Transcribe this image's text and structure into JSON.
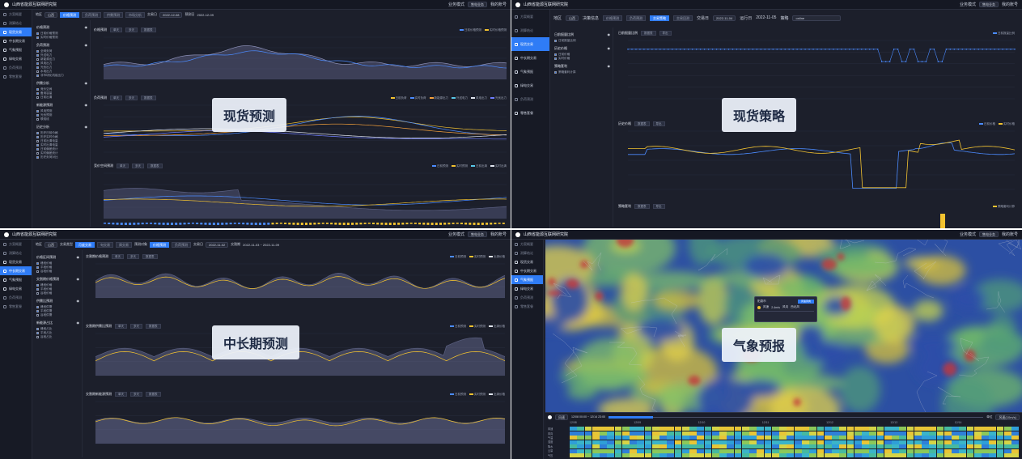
{
  "app": {
    "title": "山西省能源互联网研究院",
    "biz_mode_label": "业务模式",
    "biz_mode_value": "售电业务",
    "account": "我的账号"
  },
  "sidebar": {
    "items": [
      "方案概要",
      "测算结论",
      "现货交易",
      "中长期交易",
      "气象预报",
      "绿电交易",
      "负荷预测",
      "零售套餐"
    ]
  },
  "quadrants": {
    "spot_forecast": "现货预测",
    "spot_strategy": "现货策略",
    "mid_long_forecast": "中长期预测",
    "weather_forecast": "气象预报"
  },
  "q1": {
    "filter": {
      "region_label": "地区",
      "region_value": "山西",
      "tabs": [
        "价格预测",
        "负荷预测",
        "供需预测",
        "市场分析"
      ],
      "date_label": "交易日",
      "date_value": "2022-12-08",
      "date2_label": "预测日",
      "date2_value": "2022-12-09"
    },
    "left_groups": [
      {
        "title": "价格预测",
        "items": [
          "日前价格预测",
          "实时价格预测"
        ]
      },
      {
        "title": "负荷预测",
        "items": [
          "全网负荷",
          "外送电力",
          "新能源出力",
          "风电出力",
          "光伏出力",
          "水电出力",
          "非市场化机组出力"
        ]
      },
      {
        "title": "供需分析",
        "items": [
          "竞价空间",
          "备用容量",
          "日前出清"
        ]
      },
      {
        "title": "新能源预测",
        "items": [
          "风电预测",
          "光伏预测",
          "联络线"
        ]
      },
      {
        "title": "历史分析",
        "items": [
          "历史日前价格",
          "历史实时价格",
          "日前出清电量",
          "实时出清电量",
          "日前偏差统计",
          "实时偏差统计",
          "历史负荷对比"
        ]
      }
    ],
    "charts": [
      {
        "title": "价格预测",
        "buttons": [
          "单天",
          "多天",
          "数据表"
        ],
        "legend": [
          "日前价格预测",
          "实时价格预测"
        ]
      },
      {
        "title": "负荷预测",
        "buttons": [
          "单天",
          "多天",
          "数据表"
        ],
        "legend": [
          "日前负荷",
          "实时负荷",
          "新能源出力",
          "外送电力",
          "风电出力",
          "光伏出力"
        ]
      },
      {
        "title": "竞价空间预测",
        "buttons": [
          "单天",
          "多天",
          "数据表"
        ],
        "legend": [
          "日前预测",
          "实时预测",
          "日前出清",
          "实时出清"
        ]
      }
    ]
  },
  "q2": {
    "filter": {
      "region_label": "地区",
      "region_value": "山西",
      "strategy_label": "决策信息",
      "tabs": [
        "价格预测",
        "负荷预测",
        "交易策略",
        "交易回测"
      ],
      "date_label": "交易日",
      "date_value": "2022-11-04",
      "date2_label": "运行日",
      "date2_value": "2022-11-05",
      "method_label": "策略",
      "method_value": "online"
    },
    "left_groups": [
      {
        "title": "日前报量比例",
        "items": [
          "日前报量比例"
        ]
      },
      {
        "title": "历史价格",
        "items": [
          "日前价格",
          "实时价格"
        ]
      },
      {
        "title": "策略套利",
        "items": [
          "策略套利计算"
        ]
      }
    ],
    "charts": [
      {
        "title": "日前报量比例",
        "buttons": [
          "数据表",
          "导出"
        ],
        "legend": [
          "日前报量比例"
        ],
        "ticks": [
          "1",
          "0.8",
          "0.6",
          "0.4",
          "0.2",
          "0"
        ],
        "xticks": [
          "2022-11-05 00:15",
          "2022-11-05 04:15",
          "2022-11-05 08:15",
          "2022-11-05 12:15",
          "2022-11-05 16:15",
          "2022-11-05 20:15"
        ]
      },
      {
        "title": "历史价格",
        "buttons": [
          "数据表",
          "导出"
        ],
        "legend": [
          "日前价格",
          "实时价格"
        ],
        "xticks": [
          "2022-11-05 00:15",
          "2022-11-05 04:15",
          "2022-11-05 08:15",
          "2022-11-05 12:15",
          "2022-11-05 16:15",
          "2022-11-05 20:15"
        ]
      },
      {
        "title": "策略套利",
        "buttons": [
          "数据表",
          "导出"
        ],
        "legend": [
          "策略套利计算"
        ]
      }
    ]
  },
  "q3": {
    "filter": {
      "region_label": "地区",
      "region_value": "山西",
      "type_label": "交易类型",
      "tabs": [
        "月度交易",
        "旬交易",
        "周交易"
      ],
      "tabs2_label": "预测对象",
      "tabs2": [
        "价格预测",
        "负荷预测"
      ],
      "date_label": "交易日",
      "date_value": "2022-11-02",
      "range_label": "交割期",
      "range_value": "2022-11-03 ~ 2022-11-09"
    },
    "left_groups": [
      {
        "title": "价格区间预测",
        "items": [
          "峰段价格",
          "平段价格",
          "谷段价格"
        ]
      },
      {
        "title": "交割期价格预测",
        "items": [
          "峰段价格",
          "平段价格",
          "谷段价格"
        ]
      },
      {
        "title": "供需比预测",
        "items": [
          "峰段供需",
          "平段供需",
          "谷段供需"
        ]
      },
      {
        "title": "新能源占比",
        "items": [
          "峰段占比",
          "平段占比",
          "谷段占比"
        ]
      }
    ],
    "charts": [
      {
        "title": "交割期价格预测",
        "buttons": [
          "单天",
          "多天",
          "数据表"
        ],
        "legend": [
          "日前预测",
          "实时预测",
          "出清价格"
        ]
      },
      {
        "title": "交割期供需比预测",
        "buttons": [
          "单天",
          "多天",
          "数据表"
        ],
        "legend": [
          "日前预测",
          "实时预测",
          "出清价格"
        ]
      },
      {
        "title": "交割期新能源预测",
        "buttons": [
          "单天",
          "多天",
          "数据表"
        ],
        "legend": [
          "日前预测",
          "实时预测",
          "出清价格"
        ]
      }
    ]
  },
  "q4": {
    "popup": {
      "title": "阳泉市",
      "tag": "风速风向",
      "rows": [
        "风速",
        "2.4m/s",
        "风向",
        "西北风"
      ]
    },
    "timeline": {
      "mode": "风速",
      "range": "12/08 00:00 ~ 12/14 23:00",
      "unit_label": "单位",
      "unit": "风速(10m/s)",
      "days": [
        "12/08",
        "12/09",
        "12/10",
        "12/11",
        "12/12",
        "12/13",
        "12/14"
      ],
      "row_labels": [
        "风速",
        "风向",
        "气温",
        "湿度",
        "降水",
        "云量",
        "气压"
      ]
    }
  },
  "colors": {
    "accent": "#2f7cf6",
    "yellow": "#f2c230",
    "bg": "#1c1f2b"
  }
}
